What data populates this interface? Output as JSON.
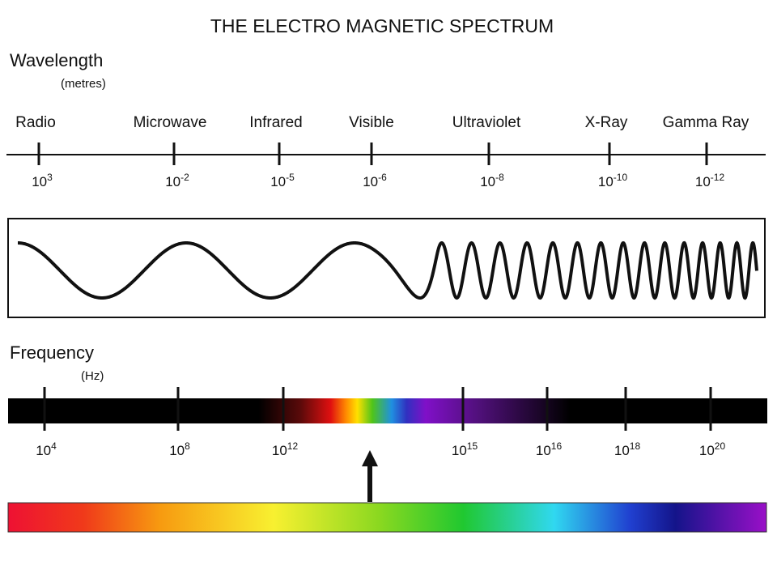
{
  "title": "THE ELECTRO MAGNETIC SPECTRUM",
  "wavelength": {
    "label": "Wavelength",
    "unit": "(metres)",
    "bands": [
      "Radio",
      "Microwave",
      "Infrared",
      "Visible",
      "Ultraviolet",
      "X-Ray",
      "Gamma Ray"
    ],
    "ticks": [
      {
        "base": "10",
        "exponent": "3"
      },
      {
        "base": "10",
        "exponent": "-2"
      },
      {
        "base": "10",
        "exponent": "-5"
      },
      {
        "base": "10",
        "exponent": "-6"
      },
      {
        "base": "10",
        "exponent": "-8"
      },
      {
        "base": "10",
        "exponent": "-10"
      },
      {
        "base": "10",
        "exponent": "-12"
      }
    ]
  },
  "frequency": {
    "label": "Frequency",
    "unit": "(Hz)",
    "ticks": [
      {
        "base": "10",
        "exponent": "4"
      },
      {
        "base": "10",
        "exponent": "8"
      },
      {
        "base": "10",
        "exponent": "12"
      },
      {
        "base": "10",
        "exponent": "15"
      },
      {
        "base": "10",
        "exponent": "16"
      },
      {
        "base": "10",
        "exponent": "18"
      },
      {
        "base": "10",
        "exponent": "20"
      }
    ]
  }
}
